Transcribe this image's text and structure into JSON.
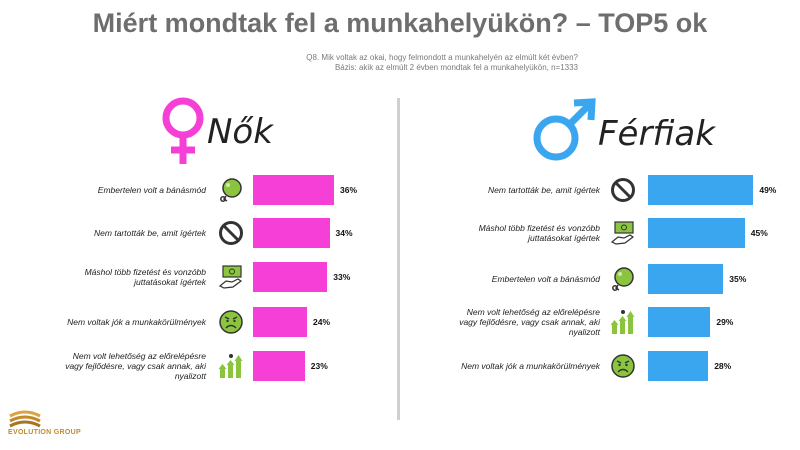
{
  "title": "Miért mondtak fel a munkahelyükön? – TOP5 ok",
  "question": "Q8. Mik voltak az okai, hogy felmondott a munkahelyén az elmúlt két évben?",
  "base": "Bázis: akik az elmúlt 2 évben mondtak fel a munkahelyükön, n=1333",
  "logo_text": "EVOLUTION GROUP",
  "colors": {
    "women": "#f53fd6",
    "men": "#3aa6f0",
    "icon_green": "#8bc53f"
  },
  "chart_data": [
    {
      "type": "bar",
      "orientation": "horizontal",
      "title": "Nők",
      "categories": [
        "Embertelen volt a bánásmód",
        "Nem tartották be, amit ígértek",
        "Máshol több fizetést és vonzóbb juttatásokat ígértek",
        "Nem voltak jók a munkakörülmények",
        "Nem volt lehetőség az előrelépésre vagy fejlődésre, vagy csak annak, aki nyalizott"
      ],
      "values": [
        36,
        34,
        33,
        24,
        23
      ],
      "labels": [
        "36%",
        "34%",
        "33%",
        "24%",
        "23%"
      ],
      "icons": [
        "ball-and-chain-icon",
        "prohibited-icon",
        "money-hand-icon",
        "sad-face-icon",
        "growth-arrows-icon"
      ]
    },
    {
      "type": "bar",
      "orientation": "horizontal",
      "title": "Férfiak",
      "categories": [
        "Nem tartották be, amit ígértek",
        "Máshol több fizetést és vonzóbb juttatásokat ígértek",
        "Embertelen volt a bánásmód",
        "Nem volt lehetőség az előrelépésre vagy fejlődésre, vagy csak annak, aki nyalizott",
        "Nem voltak jók a munkakörülmények"
      ],
      "values": [
        49,
        45,
        35,
        29,
        28
      ],
      "labels": [
        "49%",
        "45%",
        "35%",
        "29%",
        "28%"
      ],
      "icons": [
        "prohibited-icon",
        "money-hand-icon",
        "ball-and-chain-icon",
        "growth-arrows-icon",
        "sad-face-icon"
      ]
    }
  ]
}
